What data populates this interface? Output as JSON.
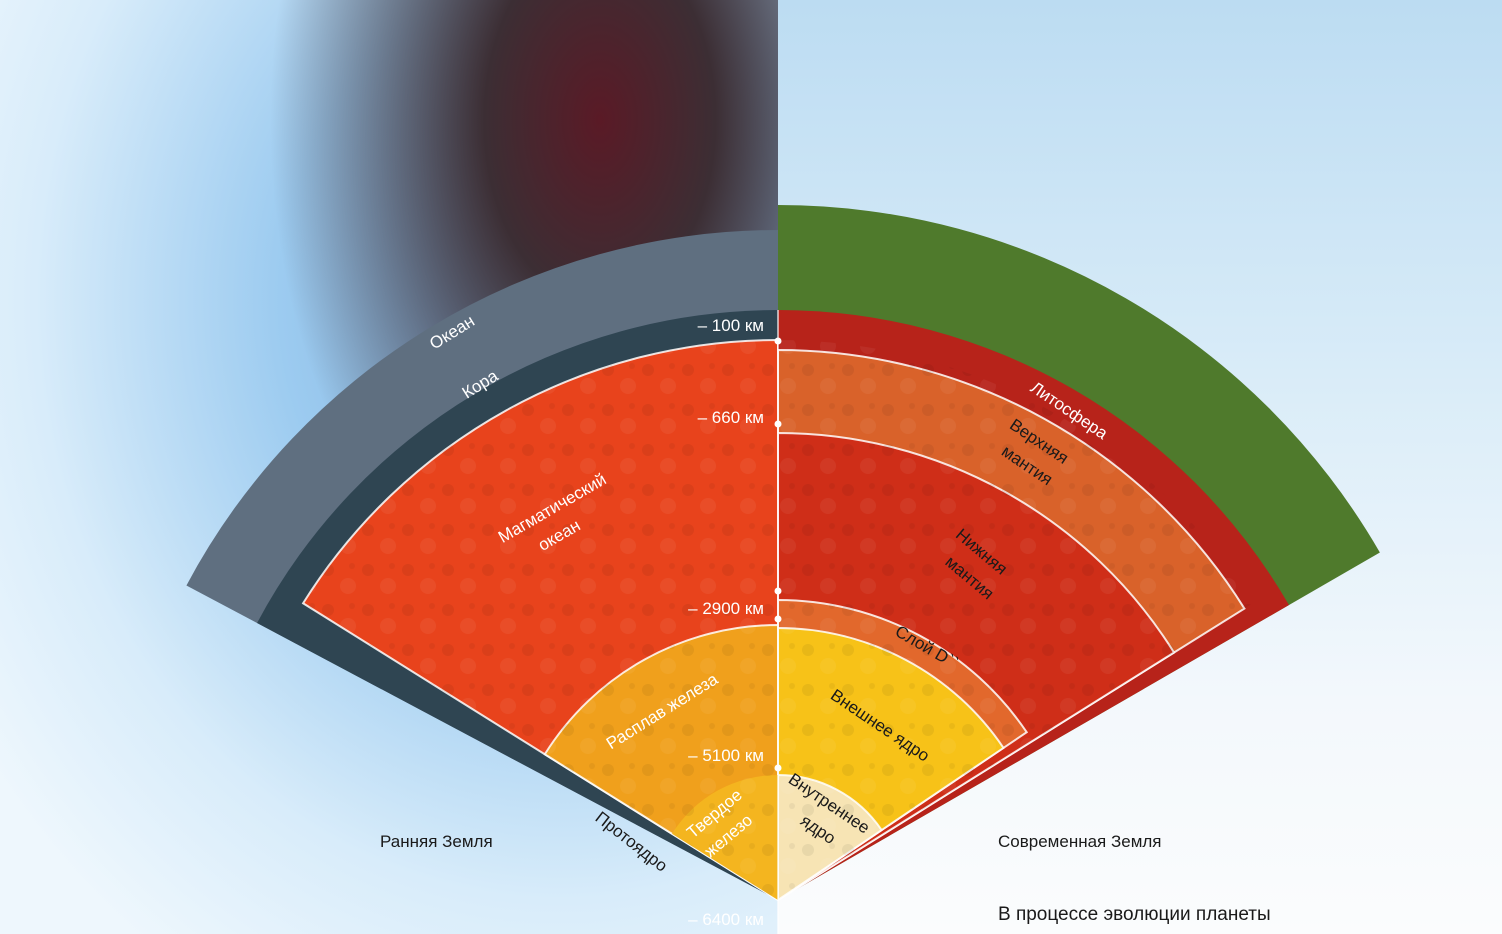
{
  "labels": {
    "ocean": "Океан",
    "crust": "Кора",
    "magma_ocean_1": "Магматический",
    "magma_ocean_2": "океан",
    "iron_melt": "Расплав железа",
    "solid_iron_1": "Твердое",
    "solid_iron_2": "железо",
    "protocore": "Протоядро",
    "lithosphere": "Литосфера",
    "upper_mantle_1": "Верхняя",
    "upper_mantle_2": "мантия",
    "lower_mantle_1": "Нижняя",
    "lower_mantle_2": "мантия",
    "d_layer": "Слой D``",
    "outer_core": "Внешнее ядро",
    "inner_core_1": "Внутреннее",
    "inner_core_2": "ядро"
  },
  "depths": {
    "d100": "– 100 км",
    "d660": "– 660 км",
    "d2900": "– 2900 км",
    "d5100": "– 5100 км",
    "d6400": "– 6400 км"
  },
  "captions": {
    "early_earth": "Ранняя Земля",
    "modern_earth": "Современная Земля",
    "bottom_text": "В процессе эволюции планеты"
  },
  "colors": {
    "ocean": "#5f6f80",
    "crust": "#2f4552",
    "magma": "#e8431c",
    "iron_melt": "#f0a01c",
    "solid_iron": "#f4b51f",
    "lithosphere": "#b7231a",
    "upper_mantle": "#d9622a",
    "lower_mantle": "#cf2e18",
    "d_layer": "#e2682c",
    "outer_core": "#f7c218",
    "inner_core": "#f7e4b4",
    "land": "#4f7a2c"
  }
}
